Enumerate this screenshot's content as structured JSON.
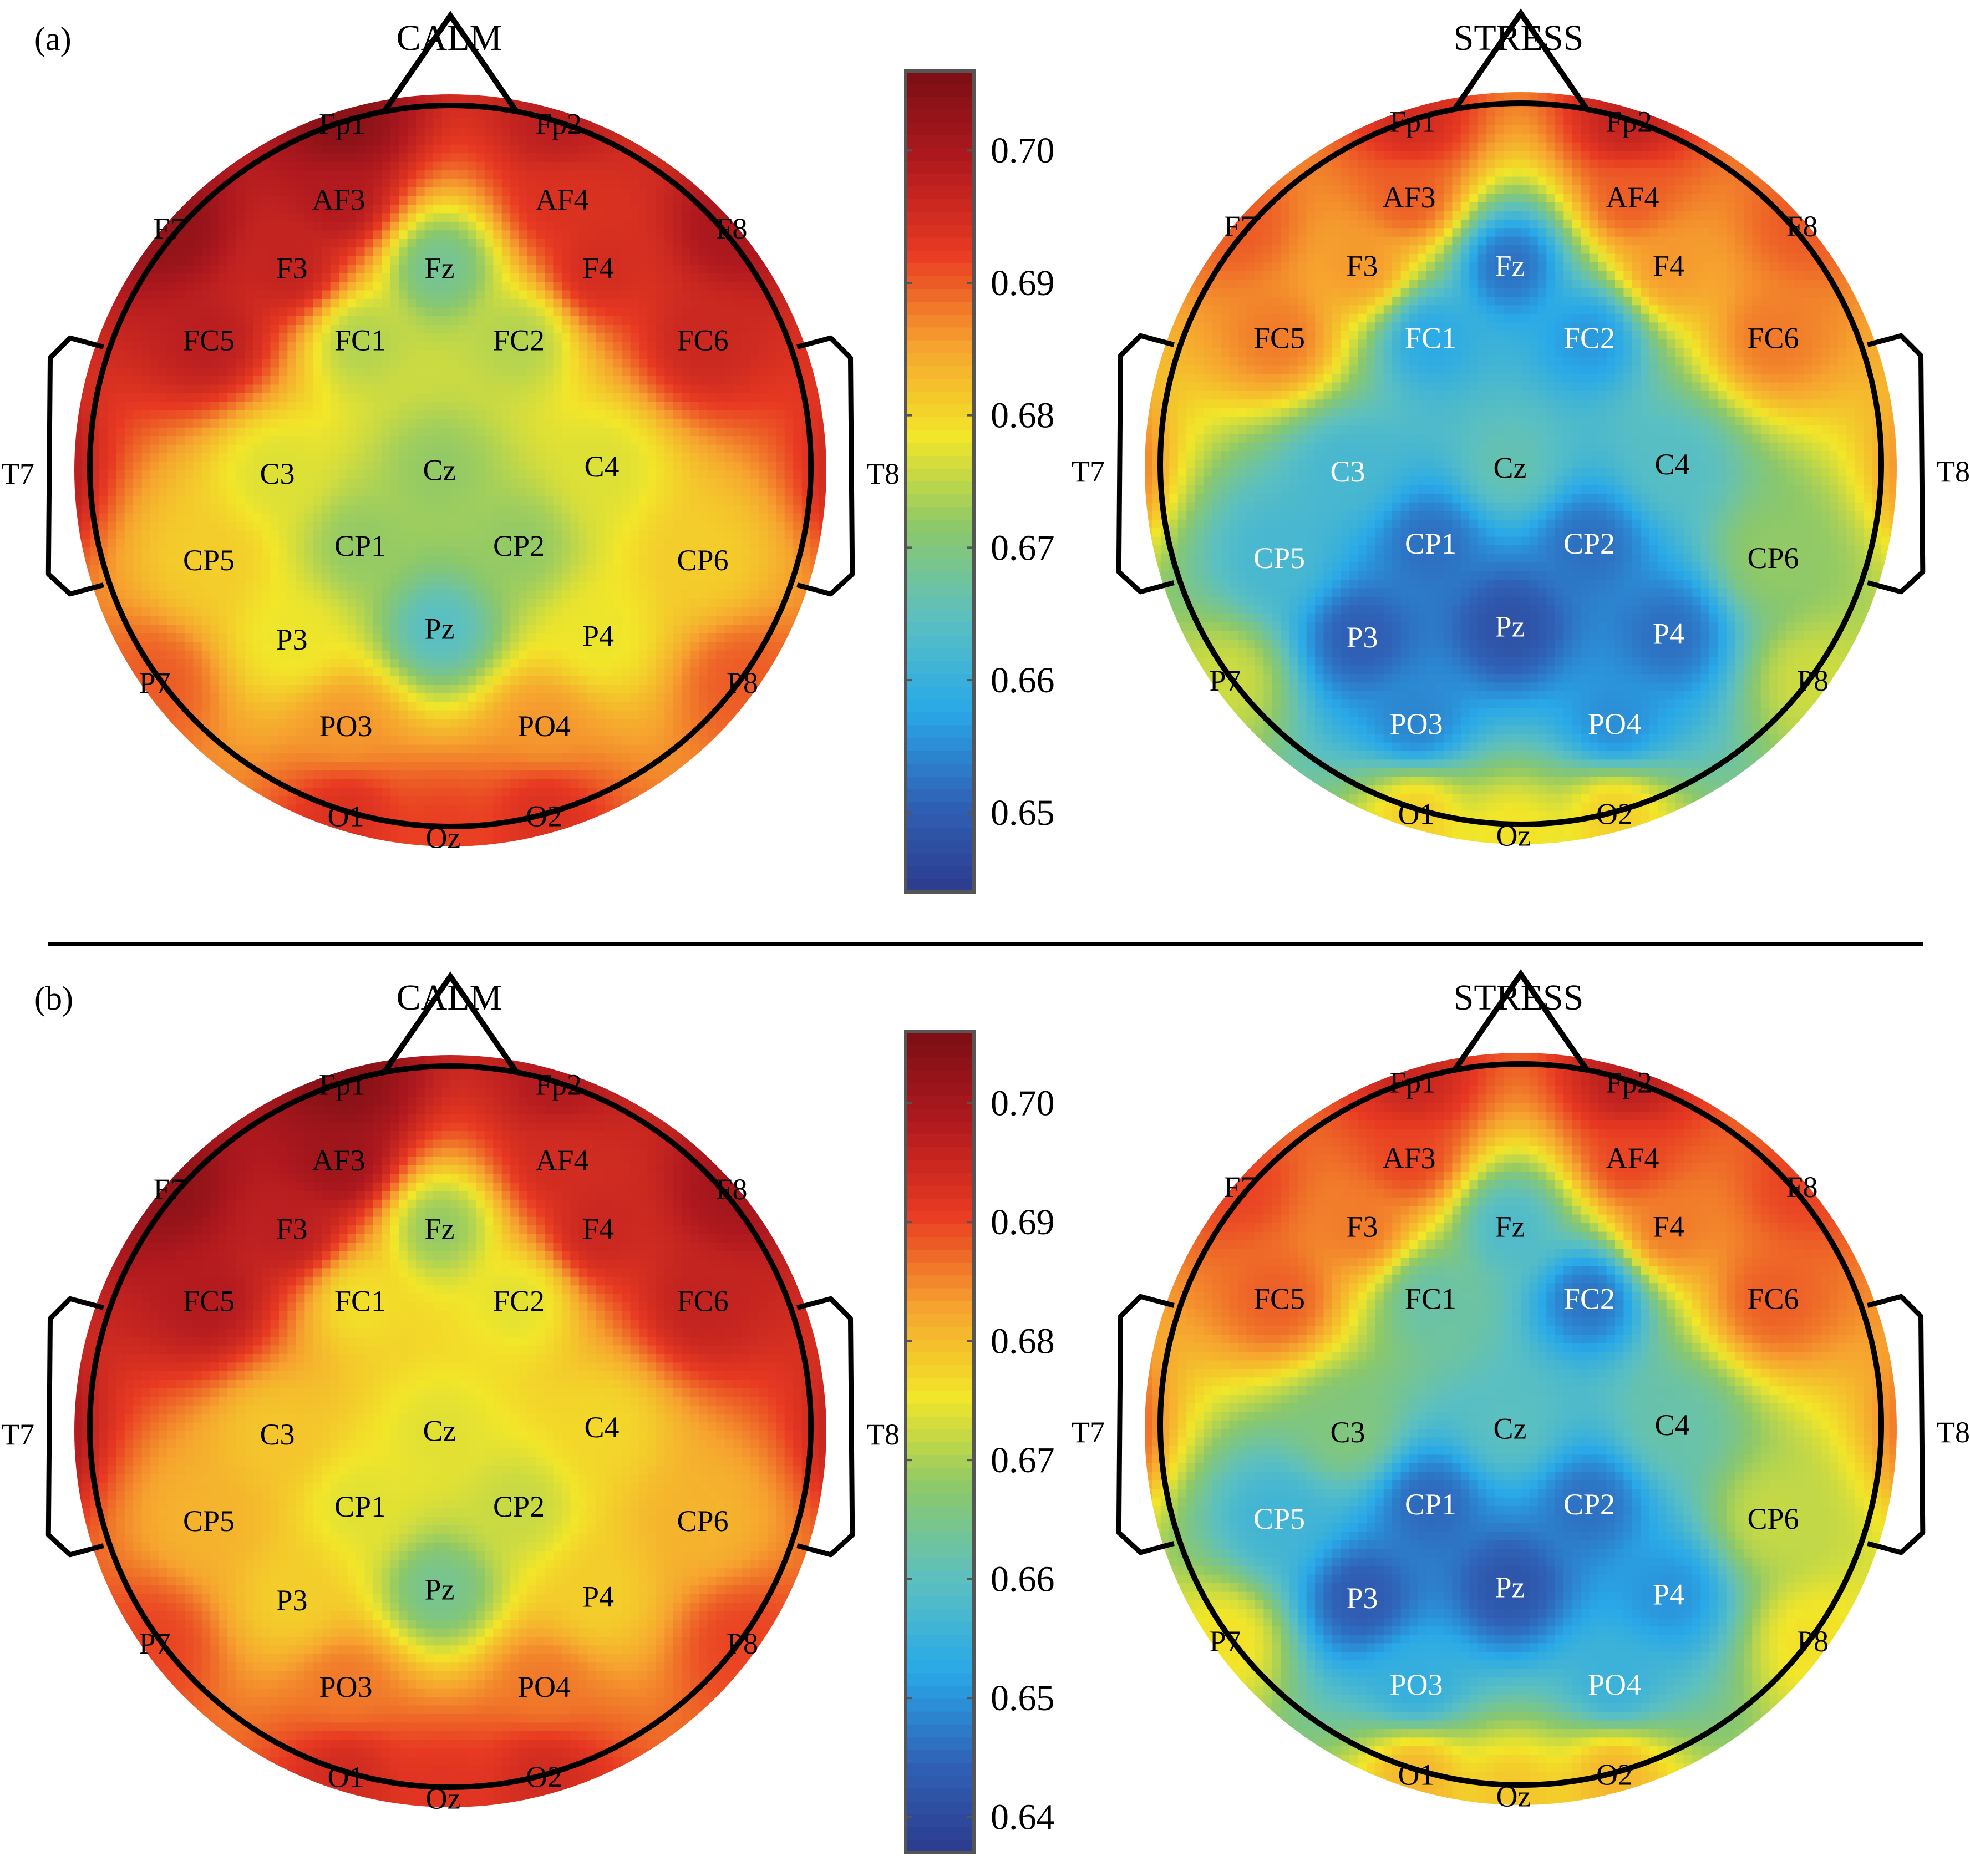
{
  "chart_data": {
    "type": "heatmap",
    "colormap": [
      "#2d3a8c",
      "#2f63b8",
      "#29a9e8",
      "#5cc0c0",
      "#8cc86a",
      "#f2e629",
      "#f6a22f",
      "#e83a22",
      "#b0191f",
      "#7a0f14"
    ],
    "electrode_names": [
      "Fp1",
      "Fp2",
      "AF3",
      "AF4",
      "F7",
      "F3",
      "Fz",
      "F4",
      "F8",
      "FC5",
      "FC1",
      "FC2",
      "FC6",
      "T7",
      "C3",
      "Cz",
      "C4",
      "T8",
      "CP5",
      "CP1",
      "CP2",
      "CP6",
      "P7",
      "P3",
      "Pz",
      "P4",
      "P8",
      "PO3",
      "PO4",
      "O1",
      "Oz",
      "O2"
    ],
    "rows": [
      {
        "panel_label": "(a)",
        "colorbar": {
          "min": 0.644,
          "max": 0.706,
          "ticks": [
            0.65,
            0.66,
            0.67,
            0.68,
            0.69,
            0.7
          ],
          "tick_labels": [
            "0.65",
            "0.66",
            "0.67",
            "0.68",
            "0.69",
            "0.70"
          ]
        },
        "maps": [
          {
            "title": "CALM",
            "values": [
              0.704,
              0.698,
              0.699,
              0.694,
              0.703,
              0.697,
              0.668,
              0.695,
              0.7,
              0.698,
              0.674,
              0.674,
              0.696,
              0.7,
              0.677,
              0.672,
              0.677,
              0.697,
              0.681,
              0.672,
              0.672,
              0.681,
              0.69,
              0.678,
              0.664,
              0.678,
              0.69,
              0.686,
              0.686,
              0.694,
              0.692,
              0.694
            ]
          },
          {
            "title": "STRESS",
            "values": [
              0.695,
              0.697,
              0.69,
              0.69,
              0.69,
              0.686,
              0.652,
              0.686,
              0.69,
              0.688,
              0.658,
              0.656,
              0.688,
              0.69,
              0.662,
              0.666,
              0.664,
              0.688,
              0.662,
              0.652,
              0.652,
              0.672,
              0.676,
              0.65,
              0.648,
              0.652,
              0.676,
              0.654,
              0.655,
              0.681,
              0.679,
              0.681
            ]
          }
        ]
      },
      {
        "panel_label": "(b)",
        "colorbar": {
          "min": 0.637,
          "max": 0.706,
          "ticks": [
            0.64,
            0.65,
            0.66,
            0.67,
            0.68,
            0.69,
            0.7
          ],
          "tick_labels": [
            "0.64",
            "0.65",
            "0.66",
            "0.67",
            "0.68",
            "0.69",
            "0.70"
          ]
        },
        "maps": [
          {
            "title": "CALM",
            "values": [
              0.704,
              0.698,
              0.701,
              0.694,
              0.703,
              0.697,
              0.668,
              0.695,
              0.7,
              0.698,
              0.676,
              0.674,
              0.696,
              0.7,
              0.679,
              0.674,
              0.677,
              0.697,
              0.681,
              0.674,
              0.672,
              0.681,
              0.69,
              0.678,
              0.664,
              0.678,
              0.69,
              0.686,
              0.686,
              0.694,
              0.692,
              0.694
            ]
          },
          {
            "title": "STRESS",
            "values": [
              0.695,
              0.697,
              0.69,
              0.69,
              0.69,
              0.686,
              0.658,
              0.686,
              0.69,
              0.688,
              0.662,
              0.646,
              0.688,
              0.69,
              0.666,
              0.66,
              0.662,
              0.688,
              0.656,
              0.645,
              0.646,
              0.672,
              0.676,
              0.643,
              0.642,
              0.65,
              0.676,
              0.654,
              0.655,
              0.681,
              0.679,
              0.681
            ]
          }
        ]
      }
    ]
  }
}
